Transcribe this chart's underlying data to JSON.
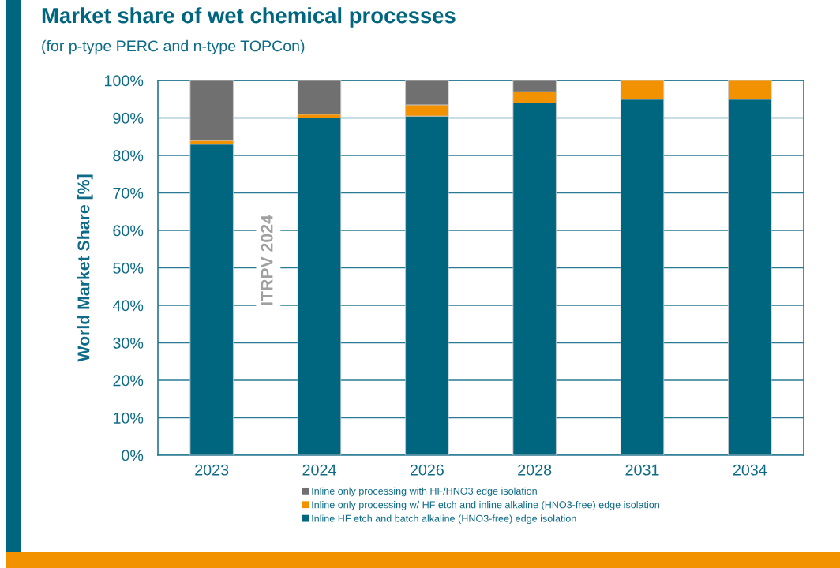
{
  "chart_data": {
    "type": "bar",
    "title": "Market share of wet chemical processes",
    "subtitle": "(for p-type PERC and n-type TOPCon)",
    "ylabel": "World Market Share [%]",
    "categories": [
      "2023",
      "2024",
      "2026",
      "2028",
      "2031",
      "2034"
    ],
    "series": [
      {
        "name": "Inline HF etch and batch alkaline (HNO3-free) edge isolation",
        "color": "#006680",
        "values": [
          83,
          90,
          90.5,
          94,
          95,
          95
        ]
      },
      {
        "name": "Inline only processing w/ HF etch and inline alkaline (HNO3-free) edge isolation",
        "color": "#f39200",
        "values": [
          1,
          1,
          3,
          3,
          5,
          5
        ]
      },
      {
        "name": "Inline only processing with HF/HNO3 edge isolation",
        "color": "#707070",
        "values": [
          16,
          9,
          6.5,
          3,
          0,
          0
        ]
      }
    ],
    "stacked": true,
    "ylim": [
      0,
      100
    ],
    "yticks": [
      {
        "value": 0,
        "label": "0%"
      },
      {
        "value": 10,
        "label": "10%"
      },
      {
        "value": 20,
        "label": "20%"
      },
      {
        "value": 30,
        "label": "30%"
      },
      {
        "value": 40,
        "label": "40%"
      },
      {
        "value": 50,
        "label": "50%"
      },
      {
        "value": 60,
        "label": "60%"
      },
      {
        "value": 70,
        "label": "70%"
      },
      {
        "value": 80,
        "label": "80%"
      },
      {
        "value": 90,
        "label": "90%"
      },
      {
        "value": 100,
        "label": "100%"
      }
    ],
    "grid": "y",
    "legend": "bottom",
    "annotations": [
      "ITRPV 2024"
    ]
  }
}
